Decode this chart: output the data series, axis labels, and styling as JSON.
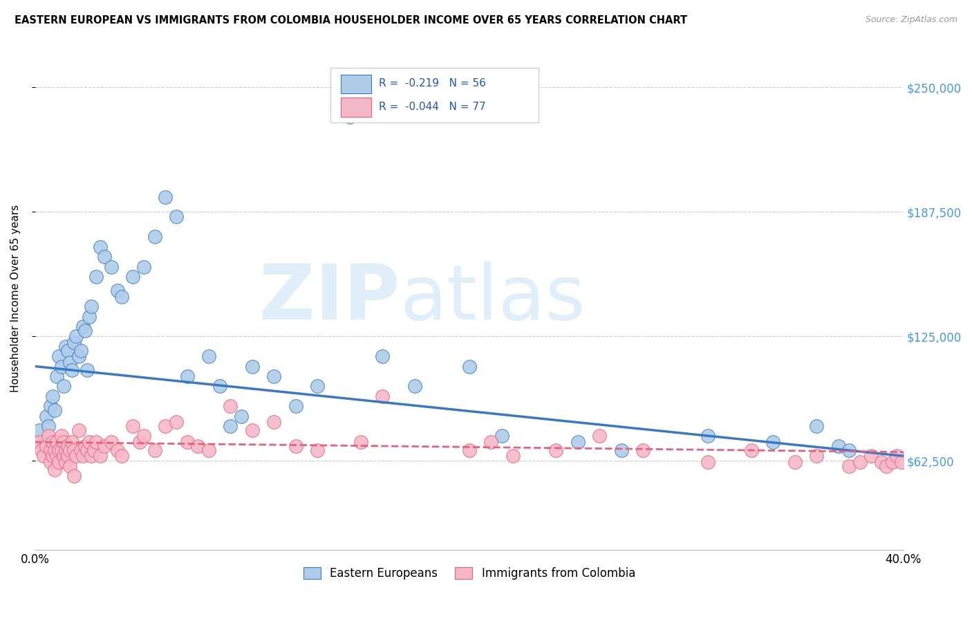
{
  "title": "EASTERN EUROPEAN VS IMMIGRANTS FROM COLOMBIA HOUSEHOLDER INCOME OVER 65 YEARS CORRELATION CHART",
  "source": "Source: ZipAtlas.com",
  "ylabel": "Householder Income Over 65 years",
  "xlim": [
    0.0,
    0.4
  ],
  "ylim": [
    18000,
    270000
  ],
  "yticks": [
    62500,
    125000,
    187500,
    250000
  ],
  "ytick_labels": [
    "$62,500",
    "$125,000",
    "$187,500",
    "$250,000"
  ],
  "xticks": [
    0.0,
    0.05,
    0.1,
    0.15,
    0.2,
    0.25,
    0.3,
    0.35,
    0.4
  ],
  "xtick_labels": [
    "0.0%",
    "",
    "",
    "",
    "",
    "",
    "",
    "",
    "40.0%"
  ],
  "blue_R": "-0.219",
  "blue_N": "56",
  "pink_R": "-0.044",
  "pink_N": "77",
  "blue_color": "#aecce8",
  "pink_color": "#f5b8c8",
  "blue_line_color": "#3878c8",
  "pink_line_color": "#e8607a",
  "blue_scatter_x": [
    0.002,
    0.004,
    0.005,
    0.006,
    0.007,
    0.008,
    0.009,
    0.01,
    0.011,
    0.012,
    0.013,
    0.014,
    0.015,
    0.016,
    0.017,
    0.018,
    0.019,
    0.02,
    0.021,
    0.022,
    0.023,
    0.024,
    0.025,
    0.026,
    0.028,
    0.03,
    0.032,
    0.035,
    0.038,
    0.04,
    0.045,
    0.05,
    0.055,
    0.06,
    0.065,
    0.07,
    0.08,
    0.085,
    0.09,
    0.095,
    0.1,
    0.11,
    0.12,
    0.13,
    0.145,
    0.16,
    0.175,
    0.2,
    0.215,
    0.25,
    0.27,
    0.31,
    0.34,
    0.36,
    0.37,
    0.375
  ],
  "blue_scatter_y": [
    78000,
    72000,
    85000,
    80000,
    90000,
    95000,
    88000,
    105000,
    115000,
    110000,
    100000,
    120000,
    118000,
    112000,
    108000,
    122000,
    125000,
    115000,
    118000,
    130000,
    128000,
    108000,
    135000,
    140000,
    155000,
    170000,
    165000,
    160000,
    148000,
    145000,
    155000,
    160000,
    175000,
    195000,
    185000,
    105000,
    115000,
    100000,
    80000,
    85000,
    110000,
    105000,
    90000,
    100000,
    235000,
    115000,
    100000,
    110000,
    75000,
    72000,
    68000,
    75000,
    72000,
    80000,
    70000,
    68000
  ],
  "pink_scatter_x": [
    0.002,
    0.003,
    0.004,
    0.005,
    0.006,
    0.007,
    0.007,
    0.008,
    0.008,
    0.009,
    0.009,
    0.01,
    0.01,
    0.011,
    0.011,
    0.012,
    0.012,
    0.013,
    0.013,
    0.014,
    0.014,
    0.015,
    0.015,
    0.016,
    0.016,
    0.017,
    0.018,
    0.018,
    0.019,
    0.02,
    0.021,
    0.022,
    0.023,
    0.024,
    0.025,
    0.026,
    0.027,
    0.028,
    0.03,
    0.032,
    0.035,
    0.038,
    0.04,
    0.045,
    0.048,
    0.05,
    0.055,
    0.06,
    0.065,
    0.07,
    0.075,
    0.08,
    0.09,
    0.1,
    0.11,
    0.12,
    0.13,
    0.15,
    0.16,
    0.2,
    0.21,
    0.22,
    0.24,
    0.26,
    0.28,
    0.31,
    0.33,
    0.35,
    0.36,
    0.375,
    0.38,
    0.385,
    0.39,
    0.392,
    0.395,
    0.397,
    0.399
  ],
  "pink_scatter_y": [
    72000,
    68000,
    65000,
    70000,
    75000,
    68000,
    62000,
    72000,
    65000,
    68000,
    58000,
    72000,
    65000,
    68000,
    62000,
    75000,
    68000,
    65000,
    72000,
    68000,
    62000,
    70000,
    65000,
    68000,
    60000,
    72000,
    68000,
    55000,
    65000,
    78000,
    68000,
    65000,
    70000,
    68000,
    72000,
    65000,
    68000,
    72000,
    65000,
    70000,
    72000,
    68000,
    65000,
    80000,
    72000,
    75000,
    68000,
    80000,
    82000,
    72000,
    70000,
    68000,
    90000,
    78000,
    82000,
    70000,
    68000,
    72000,
    95000,
    68000,
    72000,
    65000,
    68000,
    75000,
    68000,
    62000,
    68000,
    62000,
    65000,
    60000,
    62000,
    65000,
    62000,
    60000,
    62000,
    65000,
    62000
  ]
}
